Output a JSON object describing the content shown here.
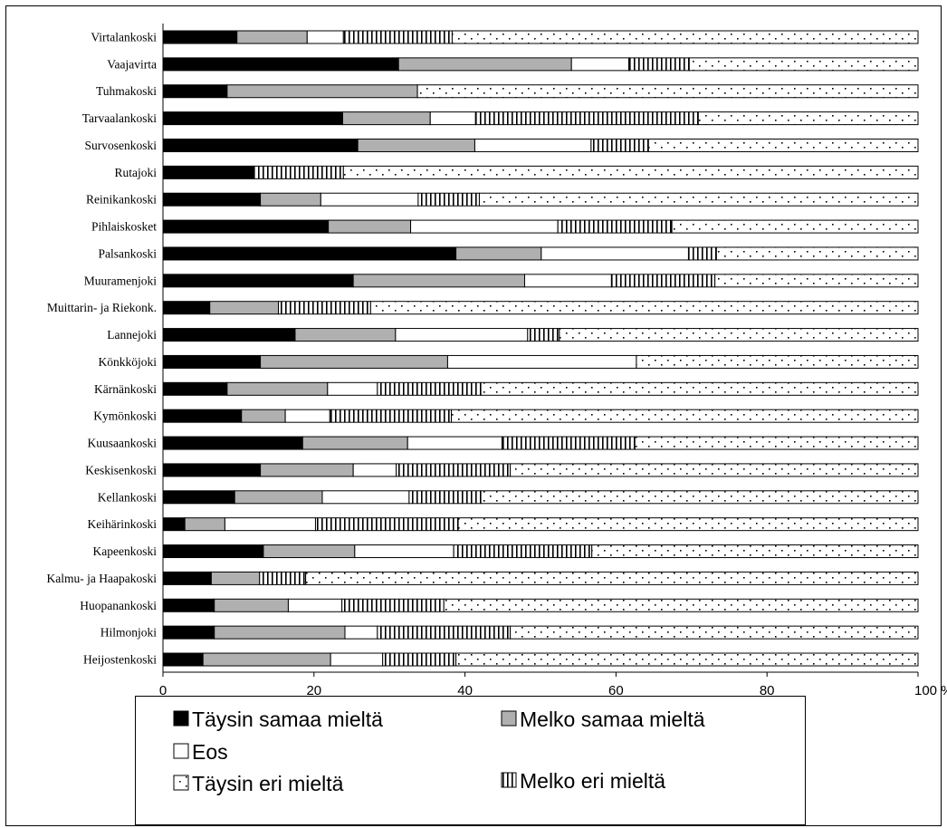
{
  "chart_data": {
    "type": "bar",
    "orientation": "horizontal",
    "stacked": true,
    "xlim": [
      0,
      100
    ],
    "xticks": [
      "0",
      "20",
      "40",
      "60",
      "80",
      "100 %"
    ],
    "grid": false,
    "legend_position": "bottom",
    "categories": [
      "Virtalankoski",
      "Vaajavirta",
      "Tuhmakoski",
      "Tarvaalankoski",
      "Survosenkoski",
      "Rutajoki",
      "Reinikankoski",
      "Pihlaiskosket",
      "Palsankoski",
      "Muuramenjoki",
      "Muittarin- ja Riekonk.",
      "Lannejoki",
      "Könkköjoki",
      "Kärnänkoski",
      "Kymönkoski",
      "Kuusaankoski",
      "Keskisenkoski",
      "Kellankoski",
      "Keihärinkoski",
      "Kapeenkoski",
      "Kalmu- ja Haapakoski",
      "Huopanankoski",
      "Hilmonjoki",
      "Heijostenkoski"
    ],
    "series": [
      {
        "name": "Täysin samaa mieltä",
        "pattern": "solid-black",
        "values": [
          9.8,
          31.2,
          8.5,
          23.8,
          25.8,
          12.0,
          12.9,
          21.9,
          38.8,
          25.2,
          6.2,
          17.5,
          12.9,
          8.5,
          10.4,
          18.5,
          12.9,
          9.5,
          2.9,
          13.3,
          6.4,
          6.8,
          6.8,
          5.3
        ]
      },
      {
        "name": "Melko samaa mieltä",
        "pattern": "solid-gray",
        "values": [
          9.3,
          22.9,
          25.2,
          11.6,
          15.5,
          0.0,
          8.0,
          10.9,
          11.3,
          22.7,
          9.1,
          13.3,
          24.8,
          13.3,
          5.8,
          13.9,
          12.3,
          11.6,
          5.3,
          12.1,
          6.4,
          9.8,
          17.3,
          16.9
        ]
      },
      {
        "name": "Eos",
        "pattern": "white",
        "values": [
          4.8,
          7.6,
          0.0,
          6.0,
          15.4,
          0.0,
          12.9,
          19.5,
          19.5,
          11.5,
          0.0,
          17.5,
          25.0,
          6.6,
          5.9,
          12.5,
          5.7,
          11.5,
          12.0,
          13.1,
          0.0,
          7.1,
          4.3,
          6.9
        ]
      },
      {
        "name": "Melko eri mieltä",
        "pattern": "vertical-stripes",
        "values": [
          14.4,
          8.0,
          0.0,
          29.5,
          7.6,
          11.9,
          8.1,
          15.1,
          3.7,
          13.7,
          12.2,
          4.2,
          0.0,
          13.7,
          16.1,
          17.6,
          15.1,
          9.5,
          18.9,
          18.3,
          6.1,
          13.5,
          17.6,
          9.7
        ]
      },
      {
        "name": "Täysin eri mieltä",
        "pattern": "dotted",
        "values": [
          61.7,
          30.3,
          66.3,
          29.1,
          35.7,
          76.1,
          58.1,
          32.6,
          26.7,
          26.9,
          72.5,
          47.5,
          37.3,
          57.9,
          61.8,
          37.5,
          54.0,
          57.9,
          60.9,
          43.2,
          81.1,
          62.8,
          54.0,
          61.2
        ]
      }
    ],
    "legend_rows": [
      [
        "Täysin samaa mieltä",
        "Melko samaa mieltä"
      ],
      [
        "Eos"
      ],
      [
        "Täysin eri mieltä",
        "Melko eri mieltä"
      ]
    ],
    "colors": {
      "solid-black": "#000000",
      "solid-gray": "#b0b0b0",
      "white": "#ffffff"
    }
  }
}
